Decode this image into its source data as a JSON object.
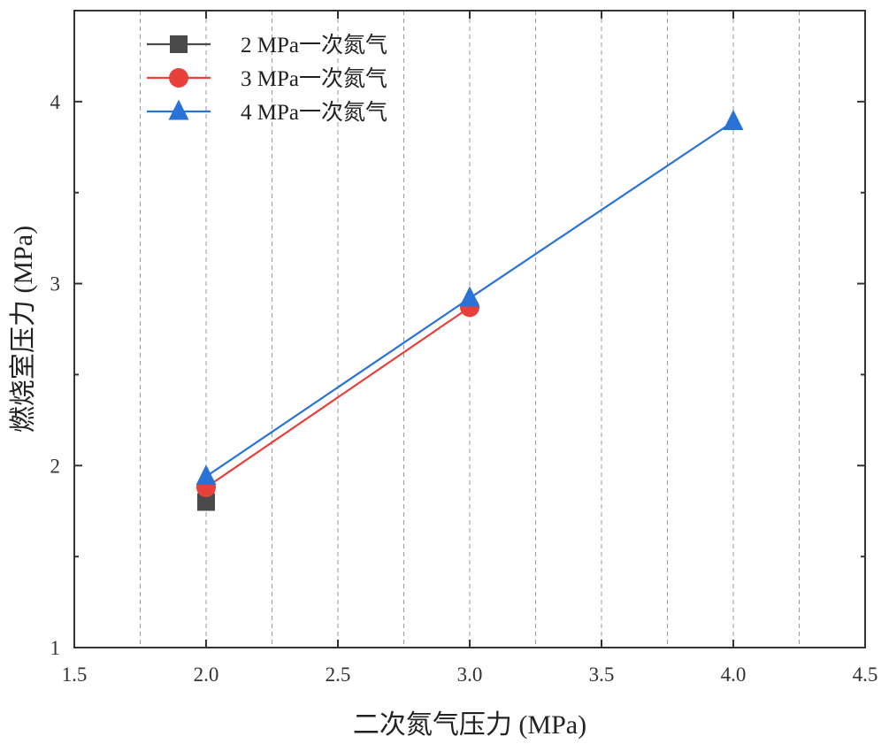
{
  "chart_data": {
    "type": "line",
    "xlabel": "二次氮气压力 (MPa)",
    "ylabel": "燃烧室压力 (MPa)",
    "xlim": [
      1.5,
      4.5
    ],
    "ylim": [
      1,
      4.5
    ],
    "x_ticks": [
      "1.5",
      "2.0",
      "2.5",
      "3.0",
      "3.5",
      "4.0",
      "4.5"
    ],
    "y_ticks": [
      "1",
      "2",
      "3",
      "4"
    ],
    "grid": "vertical dashed lines at 0.25 MPa intervals",
    "legend_position": "top-left",
    "series": [
      {
        "name": "2 MPa一次氮气",
        "marker": "square",
        "color": "#4a4a4a",
        "x": [
          2.0
        ],
        "y": [
          1.8
        ]
      },
      {
        "name": "3 MPa一次氮气",
        "marker": "circle",
        "color": "#e8413c",
        "x": [
          2.0,
          3.0
        ],
        "y": [
          1.88,
          2.87
        ]
      },
      {
        "name": "4 MPa一次氮气",
        "marker": "triangle",
        "color": "#2a73d6",
        "x": [
          2.0,
          3.0,
          4.0
        ],
        "y": [
          1.94,
          2.92,
          3.89
        ]
      }
    ]
  }
}
